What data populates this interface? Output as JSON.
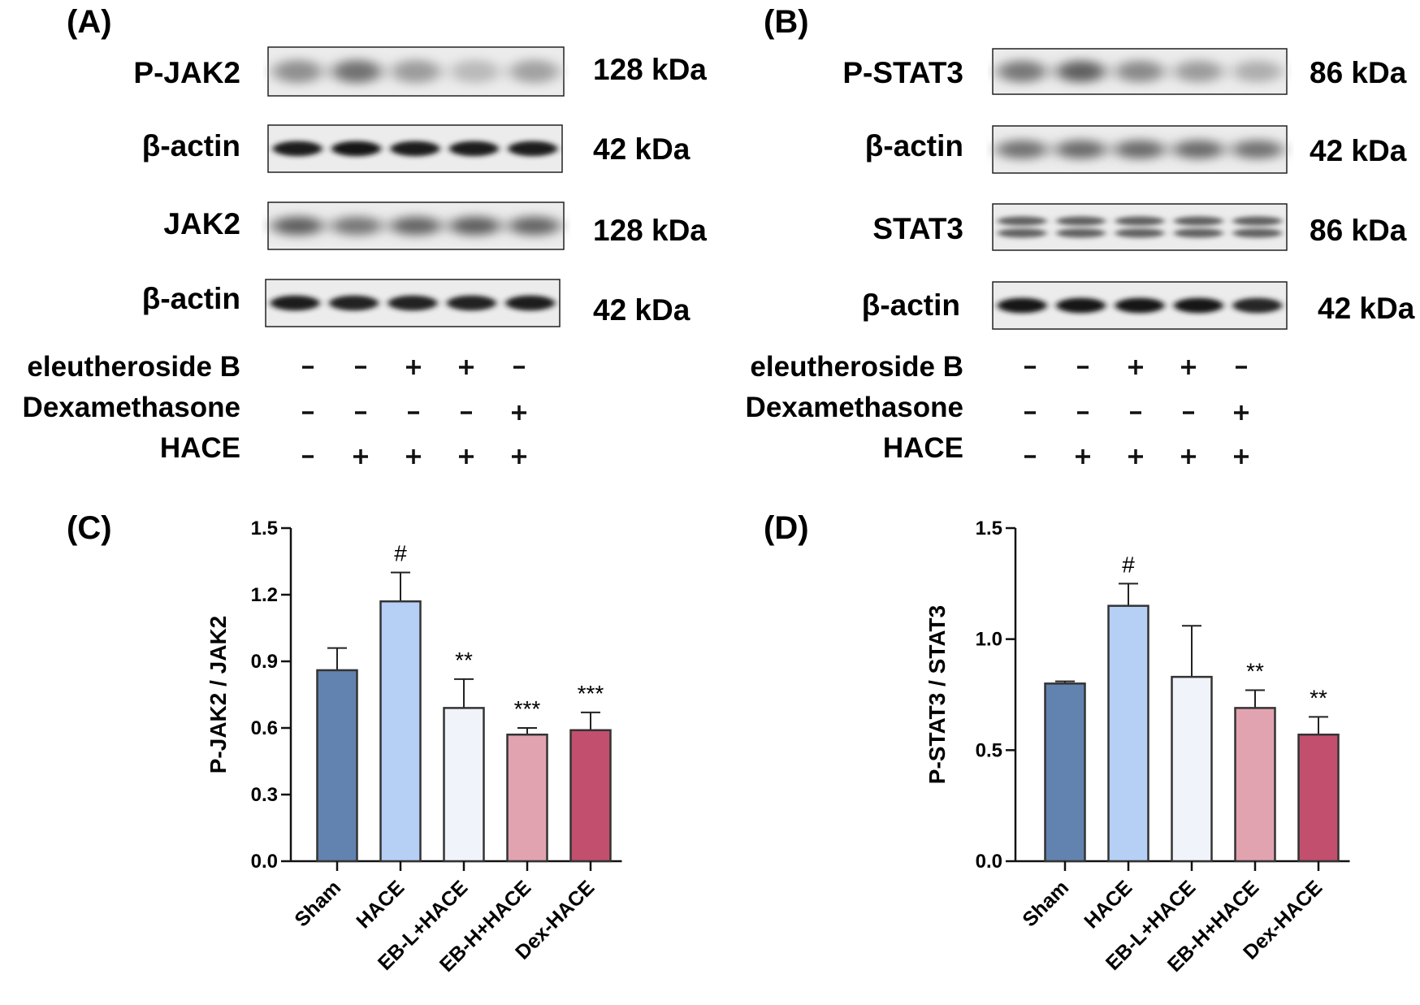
{
  "panels": {
    "A": {
      "label": "(A)",
      "blots": [
        {
          "name": "P-JAK2",
          "kda": "128 kDa",
          "lanes": [
            0.55,
            0.8,
            0.45,
            0.2,
            0.4
          ],
          "style": "faint"
        },
        {
          "name": "β-actin",
          "kda": "42 kDa",
          "lanes": [
            0.9,
            1.0,
            0.9,
            0.9,
            0.9
          ],
          "style": "strong"
        },
        {
          "name": "JAK2",
          "kda": "128 kDa",
          "lanes": [
            0.7,
            0.5,
            0.65,
            0.7,
            0.65
          ],
          "style": "medium"
        },
        {
          "name": "β-actin",
          "kda": "42 kDa",
          "lanes": [
            0.9,
            0.85,
            0.85,
            0.85,
            0.9
          ],
          "style": "strong"
        }
      ],
      "treatments": [
        {
          "label": "eleutheroside B",
          "signs": [
            "-",
            "-",
            "+",
            "+",
            "-"
          ]
        },
        {
          "label": "Dexamethasone",
          "signs": [
            "-",
            "-",
            "-",
            "-",
            "+"
          ]
        },
        {
          "label": "HACE",
          "signs": [
            "-",
            "+",
            "+",
            "+",
            "+"
          ]
        }
      ]
    },
    "B": {
      "label": "(B)",
      "blots": [
        {
          "name": "P-STAT3",
          "kda": "86 kDa",
          "lanes": [
            0.75,
            0.95,
            0.6,
            0.45,
            0.3
          ],
          "style": "faint"
        },
        {
          "name": "β-actin",
          "kda": "42 kDa",
          "lanes": [
            0.55,
            0.6,
            0.6,
            0.6,
            0.55
          ],
          "style": "medium"
        },
        {
          "name": "STAT3",
          "kda": "86 kDa",
          "lanes": [
            0.7,
            0.7,
            0.7,
            0.7,
            0.7
          ],
          "style": "double"
        },
        {
          "name": "β-actin",
          "kda": "42 kDa",
          "lanes": [
            1.0,
            0.95,
            0.95,
            0.95,
            0.8
          ],
          "style": "strong"
        }
      ],
      "treatments": [
        {
          "label": "eleutheroside B",
          "signs": [
            "-",
            "-",
            "+",
            "+",
            "-"
          ]
        },
        {
          "label": "Dexamethasone",
          "signs": [
            "-",
            "-",
            "-",
            "-",
            "+"
          ]
        },
        {
          "label": "HACE",
          "signs": [
            "-",
            "+",
            "+",
            "+",
            "+"
          ]
        }
      ]
    }
  },
  "chart_data": [
    {
      "panel": "(C)",
      "type": "bar",
      "categories": [
        "Sham",
        "HACE",
        "EB-L+HACE",
        "EB-H+HACE",
        "Dex-HACE"
      ],
      "values": [
        0.86,
        1.17,
        0.69,
        0.57,
        0.59
      ],
      "errors": [
        0.1,
        0.13,
        0.13,
        0.03,
        0.08
      ],
      "annotations": [
        "",
        "#",
        "**",
        "***",
        "***"
      ],
      "ylabel": "P-JAK2 / JAK2",
      "ylim": [
        0,
        1.5
      ],
      "yticks": [
        "0.0",
        "0.3",
        "0.6",
        "0.9",
        "1.2",
        "1.5"
      ],
      "colors": [
        "#6283b0",
        "#b5cff5",
        "#f0f4fa",
        "#e2a3b1",
        "#c24f6d"
      ]
    },
    {
      "panel": "(D)",
      "type": "bar",
      "categories": [
        "Sham",
        "HACE",
        "EB-L+HACE",
        "EB-H+HACE",
        "Dex-HACE"
      ],
      "values": [
        0.8,
        1.15,
        0.83,
        0.69,
        0.57
      ],
      "errors": [
        0.01,
        0.1,
        0.23,
        0.08,
        0.08
      ],
      "annotations": [
        "",
        "#",
        "",
        "**",
        "**"
      ],
      "ylabel": "P-STAT3 / STAT3",
      "ylim": [
        0,
        1.5
      ],
      "yticks": [
        "0.0",
        "0.5",
        "1.0",
        "1.5"
      ],
      "colors": [
        "#6283b0",
        "#b5cff5",
        "#f0f4fa",
        "#e2a3b1",
        "#c24f6d"
      ]
    }
  ]
}
